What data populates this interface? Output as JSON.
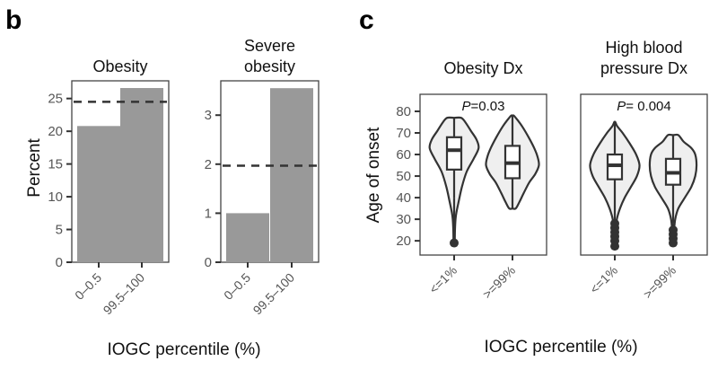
{
  "figure": {
    "panel_b_letter": "b",
    "panel_c_letter": "c",
    "panel_b_xlabel": "IOGC percentile (%)",
    "panel_c_xlabel": "IOGC percentile (%)",
    "panel_b_ylabel": "Percent",
    "panel_c_ylabel": "Age of onset"
  },
  "chart_data": [
    {
      "type": "bar",
      "panel": "b",
      "title": "Obesity",
      "categories": [
        "0–0.5",
        "99.5–100"
      ],
      "values": [
        20.8,
        26.6
      ],
      "reference_line": 24.5,
      "reference_style": "dashed",
      "xlabel": "IOGC percentile (%)",
      "ylabel": "Percent",
      "yticks": [
        0,
        5,
        10,
        15,
        20,
        25
      ],
      "ytick_labels": [
        "0",
        "5",
        "10",
        "15",
        "20",
        "25"
      ],
      "ylim": [
        0,
        27.7
      ],
      "grid": false
    },
    {
      "type": "bar",
      "panel": "b",
      "title": "Severe obesity",
      "title_lines": [
        "Severe",
        "obesity"
      ],
      "categories": [
        "0–0.5",
        "99.5–100"
      ],
      "values": [
        1.0,
        3.55
      ],
      "reference_line": 1.97,
      "reference_style": "dashed",
      "xlabel": "IOGC percentile (%)",
      "ylabel": "",
      "yticks": [
        0,
        1,
        2,
        3
      ],
      "ytick_labels": [
        "0",
        "1",
        "2",
        "3"
      ],
      "ylim": [
        0,
        3.7
      ],
      "grid": false
    },
    {
      "type": "violin",
      "panel": "c",
      "title": "Obesity Dx",
      "title_lines": [
        "Obesity Dx"
      ],
      "annotation": {
        "italic": "P",
        "text": "=0.03"
      },
      "categories": [
        "<=1%",
        ">=99%"
      ],
      "series": [
        {
          "name": "<=1%",
          "violin_min": 19,
          "violin_max": 77,
          "whisker_low": 40,
          "q1": 53,
          "median": 62,
          "q3": 68,
          "whisker_high": 77,
          "outliers": [
            19
          ],
          "density": [
            [
              19,
              0.02
            ],
            [
              25,
              0.03
            ],
            [
              30,
              0.05
            ],
            [
              33,
              0.08
            ],
            [
              38,
              0.16
            ],
            [
              45,
              0.28
            ],
            [
              52,
              0.45
            ],
            [
              58,
              0.7
            ],
            [
              63,
              0.88
            ],
            [
              67,
              0.8
            ],
            [
              71,
              0.6
            ],
            [
              75,
              0.4
            ],
            [
              77,
              0.25
            ]
          ]
        },
        {
          "name": ">=99%",
          "violin_min": 35,
          "violin_max": 78,
          "whisker_low": 35,
          "q1": 49,
          "median": 56,
          "q3": 64,
          "whisker_high": 78,
          "outliers": [],
          "density": [
            [
              35,
              0.12
            ],
            [
              38,
              0.25
            ],
            [
              42,
              0.4
            ],
            [
              47,
              0.6
            ],
            [
              51,
              0.82
            ],
            [
              55,
              0.95
            ],
            [
              59,
              0.9
            ],
            [
              63,
              0.78
            ],
            [
              68,
              0.58
            ],
            [
              73,
              0.35
            ],
            [
              76,
              0.18
            ],
            [
              78,
              0.05
            ]
          ]
        }
      ],
      "xlabel": "IOGC percentile (%)",
      "ylabel": "Age of onset",
      "yticks": [
        20,
        30,
        40,
        50,
        60,
        70,
        80
      ],
      "ytick_labels": [
        "20",
        "30",
        "40",
        "50",
        "60",
        "70",
        "80"
      ],
      "ylim": [
        13.4,
        87.9
      ],
      "grid": false
    },
    {
      "type": "violin",
      "panel": "c",
      "title": "High blood pressure Dx",
      "title_lines": [
        "High blood",
        "pressure Dx"
      ],
      "annotation": {
        "italic": "P",
        "text": "= 0.004"
      },
      "categories": [
        "<=1%",
        ">=99%"
      ],
      "series": [
        {
          "name": "<=1%",
          "violin_min": 17.5,
          "violin_max": 75,
          "whisker_low": 29,
          "q1": 48.5,
          "median": 55,
          "q3": 60,
          "whisker_high": 75,
          "outliers": [
            17.5,
            20,
            22,
            24,
            26,
            28
          ],
          "density": [
            [
              17.5,
              0.02
            ],
            [
              25,
              0.05
            ],
            [
              30,
              0.08
            ],
            [
              35,
              0.2
            ],
            [
              40,
              0.38
            ],
            [
              45,
              0.62
            ],
            [
              50,
              0.85
            ],
            [
              55,
              0.95
            ],
            [
              60,
              0.82
            ],
            [
              65,
              0.58
            ],
            [
              70,
              0.3
            ],
            [
              73,
              0.1
            ],
            [
              75,
              0.02
            ]
          ]
        },
        {
          "name": ">=99%",
          "violin_min": 19,
          "violin_max": 69,
          "whisker_low": 28,
          "q1": 46,
          "median": 51.5,
          "q3": 58,
          "whisker_high": 69,
          "outliers": [
            19,
            21,
            23,
            25
          ],
          "density": [
            [
              19,
              0.02
            ],
            [
              25,
              0.04
            ],
            [
              30,
              0.08
            ],
            [
              35,
              0.2
            ],
            [
              40,
              0.45
            ],
            [
              45,
              0.7
            ],
            [
              50,
              0.85
            ],
            [
              55,
              0.9
            ],
            [
              60,
              0.85
            ],
            [
              63,
              0.7
            ],
            [
              66,
              0.4
            ],
            [
              69,
              0.2
            ]
          ]
        }
      ],
      "xlabel": "IOGC percentile (%)",
      "ylabel": "",
      "yticks": [],
      "ytick_labels": [],
      "ylim": [
        13.4,
        87.9
      ],
      "grid": false
    }
  ]
}
